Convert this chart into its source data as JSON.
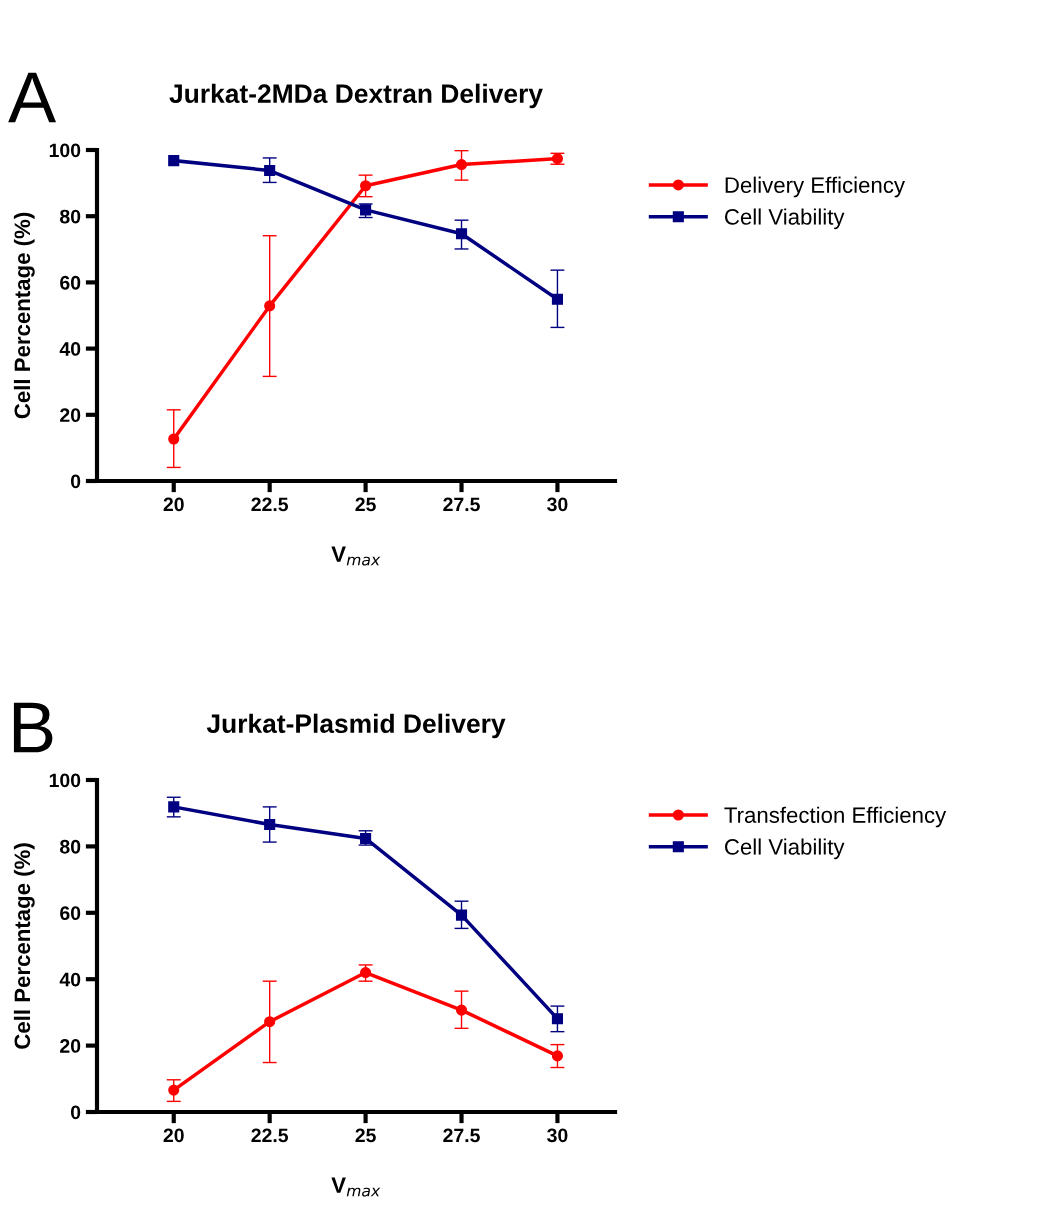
{
  "chart_data": [
    {
      "type": "line",
      "title": "Jurkat-2MDa Dextran Delivery",
      "xlabel": "V$_{max}$",
      "ylabel": "Cell Percentage (%)",
      "annotations": [
        "A"
      ],
      "x": [
        20,
        22.5,
        25,
        27.5,
        30
      ],
      "xlim": [
        18,
        31.5
      ],
      "xticks": [
        20,
        22.5,
        25,
        27.5,
        30
      ],
      "ylim": [
        0,
        100
      ],
      "yticks": [
        0,
        20,
        40,
        60,
        80,
        100
      ],
      "grid": false,
      "legend": "right",
      "series": [
        {
          "name": "Delivery Efficiency",
          "color": "#ff0000",
          "marker": "circle",
          "values": [
            12.7,
            52.9,
            89.2,
            95.6,
            97.4
          ],
          "errors": [
            [
              4.1,
              21.5
            ],
            [
              31.6,
              74.1
            ],
            [
              85.9,
              92.4
            ],
            [
              90.9,
              99.8
            ],
            [
              95.7,
              99.0
            ]
          ]
        },
        {
          "name": "Cell Viability",
          "color": "#000080",
          "marker": "square",
          "values": [
            96.8,
            93.8,
            81.9,
            74.7,
            54.9
          ],
          "errors": [
            null,
            [
              90.2,
              97.6
            ],
            [
              79.6,
              83.7
            ],
            [
              70.1,
              78.8
            ],
            [
              46.4,
              63.7
            ]
          ]
        }
      ]
    },
    {
      "type": "line",
      "title": "Jurkat-Plasmid Delivery",
      "xlabel": "V$_{max}$",
      "ylabel": "Cell Percentage (%)",
      "annotations": [
        "B"
      ],
      "x": [
        20,
        22.5,
        25,
        27.5,
        30
      ],
      "xlim": [
        18,
        31.5
      ],
      "xticks": [
        20,
        22.5,
        25,
        27.5,
        30
      ],
      "ylim": [
        0,
        100
      ],
      "yticks": [
        0,
        20,
        40,
        60,
        80,
        100
      ],
      "grid": false,
      "legend": "right",
      "series": [
        {
          "name": "Transfection Efficiency",
          "color": "#ff0000",
          "marker": "circle",
          "values": [
            6.6,
            27.2,
            42.0,
            30.7,
            16.9
          ],
          "errors": [
            [
              3.2,
              9.7
            ],
            [
              14.9,
              39.4
            ],
            [
              39.4,
              44.3
            ],
            [
              25.2,
              36.4
            ],
            [
              13.4,
              20.3
            ]
          ]
        },
        {
          "name": "Cell Viability",
          "color": "#000080",
          "marker": "square",
          "values": [
            91.9,
            86.6,
            82.4,
            59.3,
            28.1
          ],
          "errors": [
            [
              88.9,
              94.8
            ],
            [
              81.3,
              91.9
            ],
            [
              80.4,
              84.7
            ],
            [
              55.3,
              63.5
            ],
            [
              24.2,
              31.9
            ]
          ]
        }
      ]
    }
  ]
}
